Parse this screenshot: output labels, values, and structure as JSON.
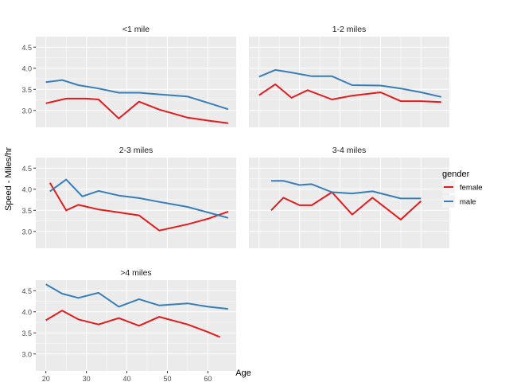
{
  "chart_data": {
    "type": "line",
    "xlabel": "Age",
    "ylabel": "Speed - Miles/hr",
    "xlim": [
      17.5,
      67
    ],
    "ylim": [
      2.6,
      4.75
    ],
    "x_ticks": [
      20,
      30,
      40,
      50,
      60
    ],
    "y_ticks": [
      3.0,
      3.5,
      4.0,
      4.5
    ],
    "y_tick_labels": [
      "3.0",
      "3.5",
      "4.0",
      "4.5"
    ],
    "legend": {
      "title": "gender",
      "position": "right",
      "entries": [
        {
          "label": "female",
          "color": "#e41a1c"
        },
        {
          "label": "male",
          "color": "#377eb8"
        }
      ]
    },
    "colors": {
      "female": "#e41a1c",
      "male": "#377eb8",
      "panel_bg": "#ebebeb",
      "grid": "#ffffff"
    },
    "facets": [
      {
        "title": "<1 mile",
        "series": [
          {
            "gender": "female",
            "x": [
              20,
              25,
              30,
              33,
              38,
              43,
              48,
              55,
              60,
              65
            ],
            "y": [
              3.17,
              3.28,
              3.28,
              3.26,
              2.81,
              3.21,
              3.02,
              2.83,
              2.76,
              2.7
            ]
          },
          {
            "gender": "male",
            "x": [
              20,
              24,
              28,
              33,
              38,
              43,
              48,
              55,
              60,
              65
            ],
            "y": [
              3.67,
              3.72,
              3.6,
              3.52,
              3.42,
              3.42,
              3.38,
              3.33,
              3.18,
              3.03
            ]
          }
        ]
      },
      {
        "title": "1-2 miles",
        "series": [
          {
            "gender": "female",
            "x": [
              20,
              24,
              28,
              32,
              38,
              43,
              50,
              55,
              60,
              65
            ],
            "y": [
              3.36,
              3.62,
              3.3,
              3.48,
              3.26,
              3.35,
              3.43,
              3.22,
              3.22,
              3.2
            ]
          },
          {
            "gender": "male",
            "x": [
              20,
              24,
              28,
              33,
              38,
              43,
              50,
              55,
              60,
              65
            ],
            "y": [
              3.8,
              3.96,
              3.9,
              3.81,
              3.81,
              3.6,
              3.59,
              3.52,
              3.43,
              3.32
            ]
          }
        ]
      },
      {
        "title": "2-3 miles",
        "series": [
          {
            "gender": "female",
            "x": [
              21,
              25,
              28,
              33,
              38,
              43,
              48,
              55,
              60,
              65
            ],
            "y": [
              4.15,
              3.5,
              3.63,
              3.52,
              3.45,
              3.38,
              3.02,
              3.17,
              3.3,
              3.47
            ]
          },
          {
            "gender": "male",
            "x": [
              21,
              25,
              29,
              33,
              38,
              43,
              48,
              55,
              60,
              65
            ],
            "y": [
              3.95,
              4.23,
              3.83,
              3.96,
              3.85,
              3.79,
              3.7,
              3.58,
              3.45,
              3.32
            ]
          }
        ]
      },
      {
        "title": "3-4 miles",
        "series": [
          {
            "gender": "female",
            "x": [
              23,
              26,
              30,
              33,
              38,
              43,
              48,
              55,
              60
            ],
            "y": [
              3.5,
              3.8,
              3.62,
              3.62,
              3.93,
              3.4,
              3.8,
              3.28,
              3.72
            ]
          },
          {
            "gender": "male",
            "x": [
              23,
              26,
              30,
              33,
              38,
              43,
              48,
              55,
              60
            ],
            "y": [
              4.2,
              4.2,
              4.1,
              4.12,
              3.93,
              3.9,
              3.95,
              3.78,
              3.78
            ]
          }
        ]
      },
      {
        "title": ">4 miles",
        "series": [
          {
            "gender": "female",
            "x": [
              20,
              24,
              28,
              33,
              38,
              43,
              48,
              55,
              60,
              63
            ],
            "y": [
              3.8,
              4.03,
              3.82,
              3.7,
              3.85,
              3.67,
              3.88,
              3.7,
              3.52,
              3.4
            ]
          },
          {
            "gender": "male",
            "x": [
              20,
              24,
              28,
              33,
              38,
              43,
              48,
              55,
              60,
              65
            ],
            "y": [
              4.65,
              4.43,
              4.33,
              4.45,
              4.12,
              4.3,
              4.15,
              4.2,
              4.12,
              4.07
            ]
          }
        ]
      }
    ]
  }
}
